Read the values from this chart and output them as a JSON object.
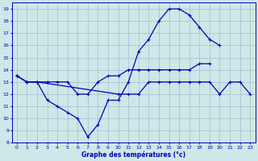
{
  "xlabel": "Graphe des températures (°c)",
  "bg_color": "#cce8e8",
  "grid_color": "#aabbcc",
  "line_color": "#0000bb",
  "xlim": [
    -0.5,
    23.5
  ],
  "ylim": [
    8,
    19.5
  ],
  "xticks": [
    0,
    1,
    2,
    3,
    4,
    5,
    6,
    7,
    8,
    9,
    10,
    11,
    12,
    13,
    14,
    15,
    16,
    17,
    18,
    19,
    20,
    21,
    22,
    23
  ],
  "yticks": [
    8,
    9,
    10,
    11,
    12,
    13,
    14,
    15,
    16,
    17,
    18,
    19
  ],
  "series_main_x": [
    0,
    1,
    2,
    3,
    4,
    5,
    6,
    7,
    8,
    9,
    10,
    11,
    12,
    13,
    14,
    15,
    16,
    17,
    18,
    19,
    20
  ],
  "series_main_y": [
    13.5,
    13.0,
    13.0,
    11.5,
    11.0,
    10.5,
    10.0,
    8.5,
    9.5,
    11.5,
    11.5,
    13.0,
    15.5,
    16.5,
    18.0,
    19.0,
    19.0,
    18.5,
    17.5,
    16.5,
    16.0
  ],
  "series_upper_x": [
    0,
    1,
    2,
    3,
    4,
    5,
    6,
    7,
    8,
    9,
    10,
    11,
    12,
    13,
    14,
    15,
    16,
    17,
    18,
    19
  ],
  "series_upper_y": [
    13.5,
    13.0,
    13.0,
    13.0,
    13.0,
    13.0,
    12.0,
    12.0,
    13.0,
    13.5,
    13.5,
    14.0,
    14.0,
    14.0,
    14.0,
    14.0,
    14.0,
    14.0,
    14.5,
    14.5
  ],
  "series_lower_x": [
    0,
    1,
    2,
    10,
    11,
    12,
    13,
    14,
    15,
    16,
    17,
    18,
    19,
    20,
    21,
    22,
    23
  ],
  "series_lower_y": [
    13.5,
    13.0,
    13.0,
    12.0,
    12.0,
    12.0,
    13.0,
    13.0,
    13.0,
    13.0,
    13.0,
    13.0,
    13.0,
    12.0,
    13.0,
    13.0,
    12.0
  ]
}
